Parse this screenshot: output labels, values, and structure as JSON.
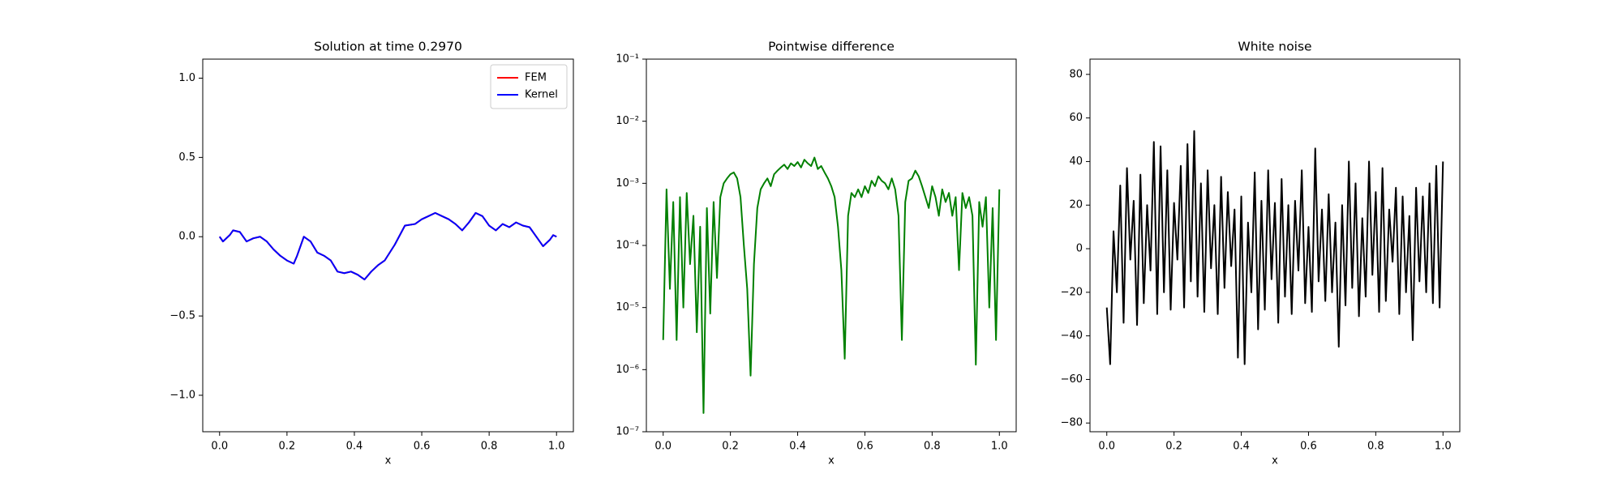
{
  "chart_data": [
    {
      "type": "line",
      "title": "Solution at time 0.2970",
      "xlabel": "x",
      "x": [
        0,
        0.01,
        0.03,
        0.04,
        0.06,
        0.08,
        0.1,
        0.12,
        0.14,
        0.16,
        0.18,
        0.2,
        0.22,
        0.23,
        0.25,
        0.27,
        0.29,
        0.31,
        0.33,
        0.35,
        0.37,
        0.39,
        0.41,
        0.43,
        0.45,
        0.47,
        0.49,
        0.52,
        0.55,
        0.58,
        0.6,
        0.62,
        0.64,
        0.66,
        0.68,
        0.7,
        0.72,
        0.74,
        0.76,
        0.78,
        0.8,
        0.82,
        0.84,
        0.86,
        0.88,
        0.9,
        0.92,
        0.94,
        0.96,
        0.98,
        0.99,
        1
      ],
      "series": [
        {
          "name": "FEM",
          "color": "#ff0000",
          "values": [
            0,
            -0.03,
            0.01,
            0.04,
            0.03,
            -0.03,
            -0.01,
            0,
            -0.03,
            -0.08,
            -0.12,
            -0.15,
            -0.17,
            -0.12,
            0,
            -0.03,
            -0.1,
            -0.12,
            -0.15,
            -0.22,
            -0.23,
            -0.22,
            -0.24,
            -0.27,
            -0.22,
            -0.18,
            -0.15,
            -0.05,
            0.07,
            0.08,
            0.11,
            0.13,
            0.15,
            0.13,
            0.11,
            0.08,
            0.04,
            0.09,
            0.15,
            0.13,
            0.07,
            0.04,
            0.08,
            0.06,
            0.09,
            0.07,
            0.06,
            0,
            -0.06,
            -0.02,
            0.01,
            0
          ]
        },
        {
          "name": "Kernel",
          "color": "#0000ff",
          "values": [
            0,
            -0.03,
            0.01,
            0.04,
            0.03,
            -0.03,
            -0.01,
            0,
            -0.03,
            -0.08,
            -0.12,
            -0.15,
            -0.17,
            -0.12,
            0,
            -0.03,
            -0.1,
            -0.12,
            -0.15,
            -0.22,
            -0.23,
            -0.22,
            -0.24,
            -0.27,
            -0.22,
            -0.18,
            -0.15,
            -0.05,
            0.07,
            0.08,
            0.11,
            0.13,
            0.15,
            0.13,
            0.11,
            0.08,
            0.04,
            0.09,
            0.15,
            0.13,
            0.07,
            0.04,
            0.08,
            0.06,
            0.09,
            0.07,
            0.06,
            0,
            -0.06,
            -0.02,
            0.01,
            0
          ]
        }
      ],
      "xlim": [
        -0.05,
        1.05
      ],
      "xticks": [
        {
          "value": 0,
          "label": "0.0"
        },
        0.2,
        0.4,
        0.6,
        0.8,
        {
          "value": 1,
          "label": "1.0"
        }
      ],
      "ylim": [
        -1.23,
        1.12
      ],
      "yticks": [
        {
          "value": -1,
          "label": "−1.0"
        },
        {
          "value": -0.5,
          "label": "−0.5"
        },
        {
          "value": 0,
          "label": "0.0"
        },
        0.5,
        {
          "value": 1,
          "label": "1.0"
        }
      ],
      "legend": "upper right"
    },
    {
      "type": "line",
      "title": "Pointwise difference",
      "xlabel": "x",
      "color": "#008000",
      "yscale": "log",
      "x": [
        0,
        0.01,
        0.02,
        0.03,
        0.04,
        0.05,
        0.06,
        0.07,
        0.08,
        0.09,
        0.1,
        0.11,
        0.12,
        0.13,
        0.14,
        0.15,
        0.16,
        0.17,
        0.18,
        0.19,
        0.2,
        0.21,
        0.22,
        0.23,
        0.24,
        0.25,
        0.26,
        0.27,
        0.28,
        0.29,
        0.3,
        0.31,
        0.32,
        0.33,
        0.34,
        0.35,
        0.36,
        0.37,
        0.38,
        0.39,
        0.4,
        0.41,
        0.42,
        0.43,
        0.44,
        0.45,
        0.46,
        0.47,
        0.48,
        0.49,
        0.5,
        0.51,
        0.52,
        0.53,
        0.54,
        0.55,
        0.56,
        0.57,
        0.58,
        0.59,
        0.6,
        0.61,
        0.62,
        0.63,
        0.64,
        0.65,
        0.66,
        0.67,
        0.68,
        0.69,
        0.7,
        0.71,
        0.72,
        0.73,
        0.74,
        0.75,
        0.76,
        0.77,
        0.78,
        0.79,
        0.8,
        0.81,
        0.82,
        0.83,
        0.84,
        0.85,
        0.86,
        0.87,
        0.88,
        0.89,
        0.9,
        0.91,
        0.92,
        0.93,
        0.94,
        0.95,
        0.96,
        0.97,
        0.98,
        0.99,
        1
      ],
      "values": [
        3e-06,
        0.0008,
        2e-05,
        0.0005,
        3e-06,
        0.0006,
        1e-05,
        0.0007,
        5e-05,
        0.0003,
        4e-06,
        0.0002,
        2e-07,
        0.0004,
        8e-06,
        0.0005,
        3e-05,
        0.0006,
        0.001,
        0.0012,
        0.0014,
        0.0015,
        0.0012,
        0.0006,
        0.0001,
        2e-05,
        8e-07,
        5e-05,
        0.0004,
        0.0008,
        0.001,
        0.0012,
        0.0009,
        0.0014,
        0.0016,
        0.0018,
        0.002,
        0.0017,
        0.0021,
        0.0019,
        0.0022,
        0.0018,
        0.0024,
        0.0021,
        0.0019,
        0.0026,
        0.0017,
        0.0019,
        0.0015,
        0.0012,
        0.0009,
        0.0006,
        0.0002,
        4e-05,
        1.5e-06,
        0.0003,
        0.0007,
        0.0006,
        0.0008,
        0.0006,
        0.0009,
        0.0007,
        0.0011,
        0.0009,
        0.0013,
        0.0011,
        0.001,
        0.0008,
        0.0012,
        0.0008,
        0.0003,
        3e-06,
        0.0005,
        0.0011,
        0.0012,
        0.0016,
        0.0013,
        0.0009,
        0.0006,
        0.0004,
        0.0009,
        0.0006,
        0.0003,
        0.0008,
        0.0005,
        0.0007,
        0.0003,
        0.0006,
        4e-05,
        0.0007,
        0.0004,
        0.0006,
        0.0003,
        1.2e-06,
        0.0005,
        0.0002,
        0.0006,
        1e-05,
        0.0004,
        3e-06,
        0.0008
      ],
      "xlim": [
        -0.05,
        1.05
      ],
      "xticks": [
        {
          "value": 0,
          "label": "0.0"
        },
        0.2,
        0.4,
        0.6,
        0.8,
        {
          "value": 1,
          "label": "1.0"
        }
      ],
      "ylim": [
        1e-07,
        0.1
      ],
      "yticks": [
        {
          "value": 1e-07,
          "label": "10⁻⁷"
        },
        {
          "value": 1e-06,
          "label": "10⁻⁶"
        },
        {
          "value": 1e-05,
          "label": "10⁻⁵"
        },
        {
          "value": 0.0001,
          "label": "10⁻⁴"
        },
        {
          "value": 0.001,
          "label": "10⁻³"
        },
        {
          "value": 0.01,
          "label": "10⁻²"
        },
        {
          "value": 0.1,
          "label": "10⁻¹"
        }
      ]
    },
    {
      "type": "line",
      "title": "White noise",
      "xlabel": "x",
      "color": "#000000",
      "x": [
        0,
        0.01,
        0.02,
        0.03,
        0.04,
        0.05,
        0.06,
        0.07,
        0.08,
        0.09,
        0.1,
        0.11,
        0.12,
        0.13,
        0.14,
        0.15,
        0.16,
        0.17,
        0.18,
        0.19,
        0.2,
        0.21,
        0.22,
        0.23,
        0.24,
        0.25,
        0.26,
        0.27,
        0.28,
        0.29,
        0.3,
        0.31,
        0.32,
        0.33,
        0.34,
        0.35,
        0.36,
        0.37,
        0.38,
        0.39,
        0.4,
        0.41,
        0.42,
        0.43,
        0.44,
        0.45,
        0.46,
        0.47,
        0.48,
        0.49,
        0.5,
        0.51,
        0.52,
        0.53,
        0.54,
        0.55,
        0.56,
        0.57,
        0.58,
        0.59,
        0.6,
        0.61,
        0.62,
        0.63,
        0.64,
        0.65,
        0.66,
        0.67,
        0.68,
        0.69,
        0.7,
        0.71,
        0.72,
        0.73,
        0.74,
        0.75,
        0.76,
        0.77,
        0.78,
        0.79,
        0.8,
        0.81,
        0.82,
        0.83,
        0.84,
        0.85,
        0.86,
        0.87,
        0.88,
        0.89,
        0.9,
        0.91,
        0.92,
        0.93,
        0.94,
        0.95,
        0.96,
        0.97,
        0.98,
        0.99,
        1
      ],
      "values": [
        -27,
        -53,
        8,
        -20,
        29,
        -34,
        37,
        -5,
        22,
        -35,
        34,
        -25,
        20,
        -10,
        49,
        -30,
        47,
        -20,
        36,
        -28,
        21,
        -5,
        38,
        -27,
        48,
        -15,
        54,
        -22,
        30,
        -29,
        36,
        -9,
        20,
        -30,
        33,
        -18,
        26,
        -8,
        18,
        -50,
        24,
        -53,
        12,
        -20,
        35,
        -37,
        22,
        -28,
        36,
        -14,
        21,
        -34,
        32,
        -22,
        20,
        -30,
        22,
        -10,
        36,
        -25,
        10,
        -29,
        46,
        -15,
        18,
        -24,
        25,
        -20,
        12,
        -45,
        20,
        -26,
        40,
        -18,
        30,
        -31,
        14,
        -22,
        40,
        -12,
        26,
        -29,
        37,
        -24,
        18,
        -6,
        28,
        -30,
        24,
        -20,
        15,
        -42,
        28,
        -15,
        24,
        -20,
        30,
        -25,
        38,
        -27,
        40
      ],
      "xlim": [
        -0.05,
        1.05
      ],
      "xticks": [
        {
          "value": 0,
          "label": "0.0"
        },
        0.2,
        0.4,
        0.6,
        0.8,
        {
          "value": 1,
          "label": "1.0"
        }
      ],
      "ylim": [
        -84,
        87
      ],
      "yticks": [
        {
          "value": -80,
          "label": "−80"
        },
        {
          "value": -60,
          "label": "−60"
        },
        {
          "value": -40,
          "label": "−40"
        },
        {
          "value": -20,
          "label": "−20"
        },
        0,
        20,
        40,
        60,
        80
      ]
    }
  ]
}
